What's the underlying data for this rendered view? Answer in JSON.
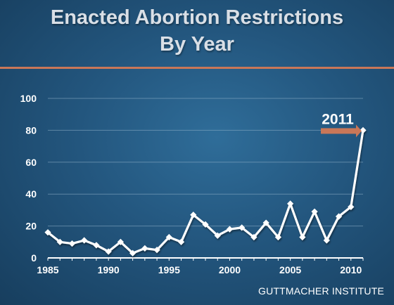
{
  "title_line1": "Enacted Abortion Restrictions",
  "title_line2": "By Year",
  "source": "GUTTMACHER INSTITUTE",
  "colors": {
    "line": "#ffffff",
    "accent": "#c97758",
    "background": "#23567e"
  },
  "chart_data": {
    "type": "line",
    "x": [
      1985,
      1986,
      1987,
      1988,
      1989,
      1990,
      1991,
      1992,
      1993,
      1994,
      1995,
      1996,
      1997,
      1998,
      1999,
      2000,
      2001,
      2002,
      2003,
      2004,
      2005,
      2006,
      2007,
      2008,
      2009,
      2010,
      2011
    ],
    "values": [
      16,
      10,
      9,
      11,
      8,
      4,
      10,
      3,
      6,
      5,
      13,
      10,
      27,
      21,
      14,
      18,
      19,
      13,
      22,
      13,
      34,
      13,
      29,
      11,
      26,
      32,
      80
    ],
    "xticks": [
      1985,
      1990,
      1995,
      2000,
      2005,
      2010
    ],
    "yticks": [
      0,
      20,
      40,
      60,
      80,
      100
    ],
    "ylim": [
      0,
      100
    ],
    "xlim": [
      1985,
      2011
    ],
    "grid": true,
    "annotation": {
      "label": "2011",
      "x": 2011,
      "y": 80
    }
  }
}
